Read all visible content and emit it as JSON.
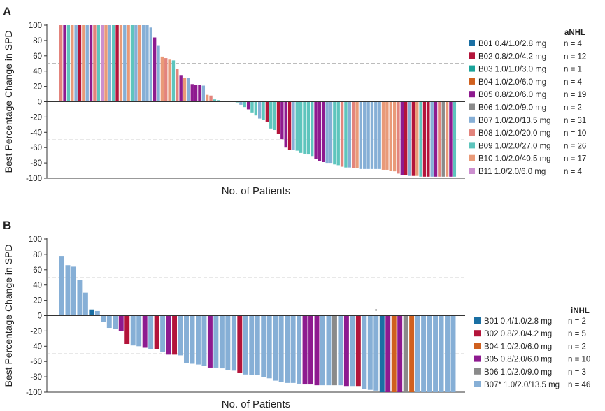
{
  "chart_data": [
    {
      "type": "bar",
      "panel_label": "A",
      "title": "",
      "xlabel": "No. of Patients",
      "ylabel": "Best Percentage Change in SPD",
      "ylim": [
        -100,
        100
      ],
      "yticks": [
        "100",
        "80",
        "60",
        "40",
        "20",
        "0",
        "-20",
        "-40",
        "-60",
        "-80",
        "-100"
      ],
      "reference_lines": [
        50,
        -50
      ],
      "legend_title": "aNHL",
      "series": [
        {
          "key": "B01",
          "name": "B01 0.4/1.0/2.8 mg",
          "n": "n = 4",
          "color": "#1a6fa3"
        },
        {
          "key": "B02",
          "name": "B02 0.8/2.0/4.2 mg",
          "n": "n = 12",
          "color": "#b3143a"
        },
        {
          "key": "B03",
          "name": "B03 1.0/1.0/3.0 mg",
          "n": "n = 1",
          "color": "#1aa39a"
        },
        {
          "key": "B04",
          "name": "B04 1.0/2.0/6.0 mg",
          "n": "n = 4",
          "color": "#d0601e"
        },
        {
          "key": "B05",
          "name": "B05 0.8/2.0/6.0 mg",
          "n": "n = 19",
          "color": "#8e1a8f"
        },
        {
          "key": "B06",
          "name": "B06 1.0/2.0/9.0 mg",
          "n": "n = 2",
          "color": "#8a8a8a"
        },
        {
          "key": "B07",
          "name": "B07 1.0/2.0/13.5 mg",
          "n": "n = 31",
          "color": "#86afd6"
        },
        {
          "key": "B08",
          "name": "B08 1.0/2.0/20.0 mg",
          "n": "n = 10",
          "color": "#e3847c"
        },
        {
          "key": "B09",
          "name": "B09 1.0/2.0/27.0 mg",
          "n": "n = 26",
          "color": "#5ec5bd"
        },
        {
          "key": "B10",
          "name": "B10 1.0/2.0/40.5 mg",
          "n": "n = 17",
          "color": "#e99a78"
        },
        {
          "key": "B11",
          "name": "B11 1.0/2.0/6.0 mg",
          "n": "n = 4",
          "color": "#cc8fcf"
        }
      ],
      "bars": [
        {
          "series": "B08",
          "value": 100
        },
        {
          "series": "B05",
          "value": 100
        },
        {
          "series": "B09",
          "value": 100
        },
        {
          "series": "B10",
          "value": 100
        },
        {
          "series": "B07",
          "value": 100
        },
        {
          "series": "B02",
          "value": 100
        },
        {
          "series": "B10",
          "value": 100
        },
        {
          "series": "B07",
          "value": 100
        },
        {
          "series": "B05",
          "value": 100
        },
        {
          "series": "B08",
          "value": 100
        },
        {
          "series": "B09",
          "value": 100
        },
        {
          "series": "B11",
          "value": 100
        },
        {
          "series": "B10",
          "value": 100
        },
        {
          "series": "B07",
          "value": 100
        },
        {
          "series": "B09",
          "value": 100
        },
        {
          "series": "B02",
          "value": 100
        },
        {
          "series": "B10",
          "value": 100
        },
        {
          "series": "B07",
          "value": 100
        },
        {
          "series": "B10",
          "value": 100
        },
        {
          "series": "B09",
          "value": 100
        },
        {
          "series": "B07",
          "value": 100
        },
        {
          "series": "B10",
          "value": 100
        },
        {
          "series": "B07",
          "value": 100
        },
        {
          "series": "B07",
          "value": 100
        },
        {
          "series": "B07",
          "value": 97
        },
        {
          "series": "B05",
          "value": 84
        },
        {
          "series": "B07",
          "value": 73
        },
        {
          "series": "B10",
          "value": 59
        },
        {
          "series": "B08",
          "value": 57
        },
        {
          "series": "B10",
          "value": 55
        },
        {
          "series": "B09",
          "value": 54
        },
        {
          "series": "B08",
          "value": 43
        },
        {
          "series": "B05",
          "value": 34
        },
        {
          "series": "B10",
          "value": 31
        },
        {
          "series": "B07",
          "value": 31
        },
        {
          "series": "B05",
          "value": 23
        },
        {
          "series": "B05",
          "value": 22
        },
        {
          "series": "B05",
          "value": 22
        },
        {
          "series": "B07",
          "value": 21
        },
        {
          "series": "B10",
          "value": 9
        },
        {
          "series": "B08",
          "value": 8
        },
        {
          "series": "B09",
          "value": 3
        },
        {
          "series": "B09",
          "value": 2
        },
        {
          "series": "B09",
          "value": 1
        },
        {
          "series": "B05",
          "value": 0.8
        },
        {
          "series": "B09",
          "value": 0.6
        },
        {
          "series": "B08",
          "value": 0.4
        },
        {
          "series": "B09",
          "value": -1
        },
        {
          "series": "B07",
          "value": -4
        },
        {
          "series": "B09",
          "value": -7
        },
        {
          "series": "B05",
          "value": -10
        },
        {
          "series": "B09",
          "value": -14
        },
        {
          "series": "B09",
          "value": -18
        },
        {
          "series": "B07",
          "value": -22
        },
        {
          "series": "B09",
          "value": -24
        },
        {
          "series": "B02",
          "value": -26
        },
        {
          "series": "B09",
          "value": -35
        },
        {
          "series": "B09",
          "value": -37
        },
        {
          "series": "B02",
          "value": -42
        },
        {
          "series": "B05",
          "value": -49
        },
        {
          "series": "B05",
          "value": -60
        },
        {
          "series": "B02",
          "value": -63
        },
        {
          "series": "B07",
          "value": -63
        },
        {
          "series": "B09",
          "value": -64
        },
        {
          "series": "B09",
          "value": -67
        },
        {
          "series": "B09",
          "value": -68
        },
        {
          "series": "B09",
          "value": -69
        },
        {
          "series": "B09",
          "value": -71
        },
        {
          "series": "B05",
          "value": -75
        },
        {
          "series": "B05",
          "value": -78
        },
        {
          "series": "B05",
          "value": -79
        },
        {
          "series": "B07",
          "value": -80
        },
        {
          "series": "B07",
          "value": -80
        },
        {
          "series": "B09",
          "value": -82
        },
        {
          "series": "B09",
          "value": -83
        },
        {
          "series": "B08",
          "value": -85
        },
        {
          "series": "B09",
          "value": -86
        },
        {
          "series": "B07",
          "value": -86
        },
        {
          "series": "B08",
          "value": -87
        },
        {
          "series": "B10",
          "value": -87
        },
        {
          "series": "B07",
          "value": -88
        },
        {
          "series": "B07",
          "value": -88
        },
        {
          "series": "B07",
          "value": -88
        },
        {
          "series": "B07",
          "value": -88
        },
        {
          "series": "B07",
          "value": -88
        },
        {
          "series": "B07",
          "value": -88
        },
        {
          "series": "B10",
          "value": -89
        },
        {
          "series": "B10",
          "value": -89
        },
        {
          "series": "B10",
          "value": -90
        },
        {
          "series": "B10",
          "value": -91
        },
        {
          "series": "B08",
          "value": -94
        },
        {
          "series": "B05",
          "value": -96
        },
        {
          "series": "B02",
          "value": -96
        },
        {
          "series": "B07",
          "value": -97
        },
        {
          "series": "B02",
          "value": -97
        },
        {
          "series": "B10",
          "value": -97
        },
        {
          "series": "B09",
          "value": -98
        },
        {
          "series": "B02",
          "value": -98
        },
        {
          "series": "B02",
          "value": -98
        },
        {
          "series": "B07",
          "value": -98
        },
        {
          "series": "B05",
          "value": -98
        },
        {
          "series": "B08",
          "value": -98
        },
        {
          "series": "B06",
          "value": -98
        },
        {
          "series": "B10",
          "value": -98
        },
        {
          "series": "B05",
          "value": -98
        },
        {
          "series": "B09",
          "value": -98
        }
      ]
    },
    {
      "type": "bar",
      "panel_label": "B",
      "title": "",
      "xlabel": "No. of Patients",
      "ylabel": "Best Percentage Change in SPD",
      "ylim": [
        -100,
        100
      ],
      "yticks": [
        "100",
        "80",
        "60",
        "40",
        "20",
        "0",
        "-20",
        "-40",
        "-60",
        "-80",
        "-100"
      ],
      "reference_lines": [
        50,
        -50
      ],
      "legend_title": "iNHL",
      "annotation": "·",
      "series": [
        {
          "key": "B01",
          "name": "B01 0.4/1.0/2.8 mg",
          "n": "n = 2",
          "color": "#1a6fa3"
        },
        {
          "key": "B02",
          "name": "B02 0.8/2.0/4.2 mg",
          "n": "n = 5",
          "color": "#b3143a"
        },
        {
          "key": "B04",
          "name": "B04 1.0/2.0/6.0 mg",
          "n": "n = 2",
          "color": "#d0601e"
        },
        {
          "key": "B05",
          "name": "B05 0.8/2.0/6.0 mg",
          "n": "n = 10",
          "color": "#8e1a8f"
        },
        {
          "key": "B06",
          "name": "B06 1.0/2.0/9.0 mg",
          "n": "n = 3",
          "color": "#8a8a8a"
        },
        {
          "key": "B07",
          "name": "B07* 1.0/2.0/13.5 mg",
          "n": "n = 46",
          "color": "#86afd6"
        }
      ],
      "bars": [
        {
          "series": "B07",
          "value": 78
        },
        {
          "series": "B07",
          "value": 66
        },
        {
          "series": "B07",
          "value": 64
        },
        {
          "series": "B07",
          "value": 47
        },
        {
          "series": "B07",
          "value": 30
        },
        {
          "series": "B01",
          "value": 8
        },
        {
          "series": "B07",
          "value": 6
        },
        {
          "series": "B07",
          "value": -8
        },
        {
          "series": "B07",
          "value": -16
        },
        {
          "series": "B07",
          "value": -17
        },
        {
          "series": "B05",
          "value": -20
        },
        {
          "series": "B02",
          "value": -37
        },
        {
          "series": "B07",
          "value": -39
        },
        {
          "series": "B07",
          "value": -40
        },
        {
          "series": "B05",
          "value": -42
        },
        {
          "series": "B07",
          "value": -44
        },
        {
          "series": "B02",
          "value": -44
        },
        {
          "series": "B07",
          "value": -47
        },
        {
          "series": "B05",
          "value": -51
        },
        {
          "series": "B02",
          "value": -51
        },
        {
          "series": "B07",
          "value": -52
        },
        {
          "series": "B07",
          "value": -62
        },
        {
          "series": "B07",
          "value": -63
        },
        {
          "series": "B07",
          "value": -64
        },
        {
          "series": "B07",
          "value": -66
        },
        {
          "series": "B05",
          "value": -68
        },
        {
          "series": "B07",
          "value": -68
        },
        {
          "series": "B07",
          "value": -69
        },
        {
          "series": "B07",
          "value": -71
        },
        {
          "series": "B07",
          "value": -72
        },
        {
          "series": "B02",
          "value": -75
        },
        {
          "series": "B07",
          "value": -77
        },
        {
          "series": "B07",
          "value": -78
        },
        {
          "series": "B07",
          "value": -78
        },
        {
          "series": "B07",
          "value": -80
        },
        {
          "series": "B07",
          "value": -82
        },
        {
          "series": "B07",
          "value": -85
        },
        {
          "series": "B07",
          "value": -87
        },
        {
          "series": "B07",
          "value": -88
        },
        {
          "series": "B07",
          "value": -88
        },
        {
          "series": "B07",
          "value": -89
        },
        {
          "series": "B05",
          "value": -90
        },
        {
          "series": "B05",
          "value": -90
        },
        {
          "series": "B05",
          "value": -91
        },
        {
          "series": "B07",
          "value": -91
        },
        {
          "series": "B07",
          "value": -91
        },
        {
          "series": "B06",
          "value": -91
        },
        {
          "series": "B07",
          "value": -91
        },
        {
          "series": "B05",
          "value": -92
        },
        {
          "series": "B07",
          "value": -92
        },
        {
          "series": "B02",
          "value": -92
        },
        {
          "series": "B07",
          "value": -96
        },
        {
          "series": "B07",
          "value": -97
        },
        {
          "series": "B07",
          "value": -98
        },
        {
          "series": "B01",
          "value": -100
        },
        {
          "series": "B05",
          "value": -100
        },
        {
          "series": "B04",
          "value": -100
        },
        {
          "series": "B05",
          "value": -100
        },
        {
          "series": "B06",
          "value": -100
        },
        {
          "series": "B04",
          "value": -100
        },
        {
          "series": "B07",
          "value": -100
        },
        {
          "series": "B07",
          "value": -100
        },
        {
          "series": "B07",
          "value": -100
        },
        {
          "series": "B07",
          "value": -100
        },
        {
          "series": "B07",
          "value": -100
        },
        {
          "series": "B07",
          "value": -100
        },
        {
          "series": "B07",
          "value": -100
        }
      ]
    }
  ]
}
